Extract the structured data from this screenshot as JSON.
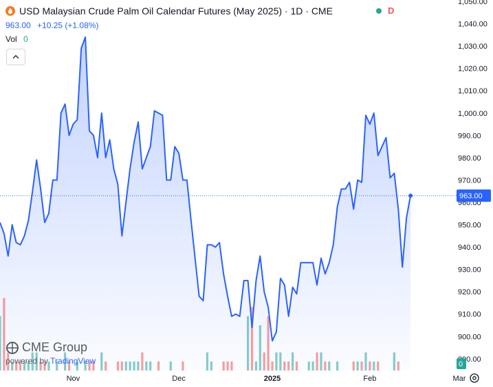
{
  "header": {
    "title": "USD Malaysian Crude Palm Oil Calendar Futures (May 2025) · 1D · CME",
    "price": "963.00",
    "change": "+10.25 (+1.08%)",
    "vol_label": "Vol",
    "vol_value": "0",
    "status_letter": "D"
  },
  "logo": {
    "name": "CME Group",
    "powered_prefix": "powered by ",
    "powered_brand": "TradingView"
  },
  "colors": {
    "line": "#2962ff",
    "up_volume": "#26a69a",
    "down_volume": "#ef5350",
    "last_price_bg": "#2962ff",
    "volume_badge_bg": "#26a69a"
  },
  "chart_data": {
    "type": "area",
    "title": "USD Malaysian Crude Palm Oil Calendar Futures (May 2025)",
    "x_tick_labels": [
      "Nov",
      "Dec",
      "2025",
      "Feb",
      "Mar"
    ],
    "y_tick_labels": [
      "1,050.00",
      "1,040.00",
      "1,030.00",
      "1,020.00",
      "1,010.00",
      "1,000.00",
      "990.00",
      "980.00",
      "970.00",
      "960.00",
      "950.00",
      "940.00",
      "930.00",
      "920.00",
      "910.00",
      "900.00",
      "890.00"
    ],
    "ylim": [
      884,
      1050
    ],
    "last_price_label": "963.00",
    "volume_badge": "0",
    "series": [
      {
        "values": [
          951,
          946,
          936,
          950,
          942,
          941,
          945,
          952,
          965,
          979,
          966,
          951,
          955,
          970,
          970,
          1000,
          1004,
          990,
          995,
          997,
          1029,
          1034,
          992,
          990,
          980,
          1000,
          980,
          988,
          975,
          968,
          945,
          960,
          975,
          987,
          996,
          975,
          980,
          985,
          1001,
          1000,
          999,
          970,
          970,
          985,
          982,
          970,
          970,
          952,
          935,
          918,
          916,
          941,
          941,
          940,
          942,
          928,
          918,
          909,
          910,
          909,
          925,
          925,
          904,
          925,
          936,
          920,
          913,
          898,
          902,
          926,
          923,
          909,
          922,
          919,
          933,
          933,
          933,
          933,
          923,
          935,
          928,
          933,
          941,
          958,
          966,
          966,
          969,
          957,
          970,
          969,
          999,
          995,
          1000,
          981,
          985,
          989,
          971,
          973,
          957,
          931,
          953,
          963
        ]
      }
    ],
    "volume": [
      6,
      8,
      2,
      1,
      1,
      1,
      1,
      1,
      2,
      2,
      1,
      1,
      1,
      0,
      1,
      0,
      2,
      1,
      0,
      1,
      0,
      1,
      1,
      1,
      0,
      2,
      1,
      0,
      0,
      1,
      1,
      1,
      1,
      1,
      1,
      2,
      1,
      1,
      0,
      1,
      0,
      0,
      1,
      0,
      0,
      1,
      0,
      0,
      0,
      0,
      0,
      2,
      1,
      0,
      0,
      1,
      1,
      1,
      0,
      0,
      0,
      6,
      7,
      1,
      5,
      2,
      6,
      1,
      2,
      2,
      1,
      1,
      2,
      1,
      0,
      0,
      1,
      1,
      2,
      2,
      1,
      1,
      0,
      1,
      0,
      0,
      0,
      1,
      1,
      1,
      2,
      1,
      1,
      1,
      0,
      0,
      0,
      2,
      1,
      0,
      0,
      0
    ],
    "grid": false,
    "legend": "none"
  }
}
